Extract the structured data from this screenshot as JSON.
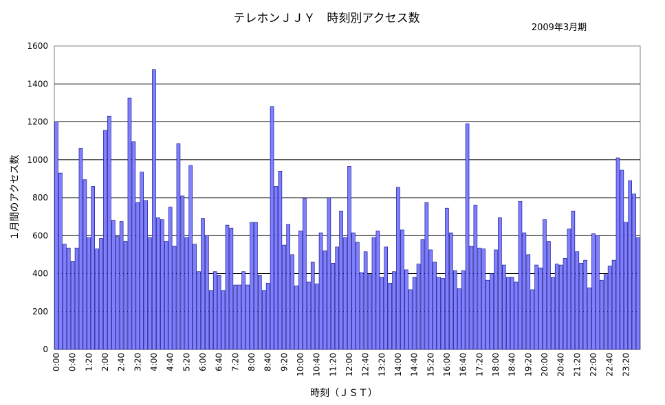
{
  "chart_data": {
    "type": "bar",
    "title": "テレホンＪＪＹ　時刻別アクセス数",
    "subtitle": "2009年3月期",
    "xlabel": "時刻（ＪＳＴ）",
    "ylabel": "１月間のアクセス数",
    "ylim": [
      0,
      1600
    ],
    "yticks": [
      "0",
      "200",
      "400",
      "600",
      "800",
      "1000",
      "1200",
      "1400",
      "1600"
    ],
    "grid": true,
    "legend": "none",
    "bar_color": "#8080ff",
    "bar_stroke": "#000080",
    "xtick_labels": [
      "0:00",
      "0:40",
      "1:20",
      "2:00",
      "2:40",
      "3:20",
      "4:00",
      "4:40",
      "5:20",
      "6:00",
      "6:40",
      "7:20",
      "8:00",
      "8:40",
      "9:20",
      "10:00",
      "10:40",
      "11:20",
      "12:00",
      "12:40",
      "13:20",
      "14:00",
      "14:40",
      "15:20",
      "16:00",
      "16:40",
      "17:20",
      "18:00",
      "18:40",
      "19:20",
      "20:00",
      "20:40",
      "21:20",
      "22:00",
      "22:40",
      "23:20"
    ],
    "xtick_every": 4,
    "values": [
      1200,
      930,
      555,
      535,
      465,
      535,
      1060,
      895,
      590,
      860,
      530,
      585,
      1155,
      1230,
      680,
      595,
      675,
      570,
      1325,
      1095,
      775,
      935,
      785,
      590,
      1475,
      695,
      685,
      570,
      750,
      545,
      1085,
      810,
      590,
      970,
      555,
      410,
      690,
      600,
      310,
      410,
      390,
      310,
      655,
      640,
      340,
      340,
      410,
      340,
      670,
      670,
      390,
      310,
      350,
      1280,
      860,
      940,
      550,
      660,
      500,
      335,
      625,
      795,
      355,
      460,
      345,
      615,
      520,
      800,
      455,
      540,
      730,
      590,
      965,
      615,
      565,
      405,
      515,
      395,
      590,
      625,
      380,
      540,
      350,
      410,
      855,
      630,
      420,
      315,
      380,
      450,
      580,
      775,
      525,
      460,
      380,
      375,
      745,
      615,
      415,
      320,
      415,
      1190,
      545,
      760,
      535,
      530,
      365,
      400,
      525,
      695,
      445,
      380,
      380,
      355,
      780,
      615,
      500,
      315,
      445,
      430,
      685,
      570,
      380,
      450,
      445,
      480,
      635,
      730,
      515,
      455,
      470,
      325,
      610,
      600,
      365,
      395,
      440,
      470,
      1010,
      945,
      670,
      890,
      820,
      590
    ]
  }
}
